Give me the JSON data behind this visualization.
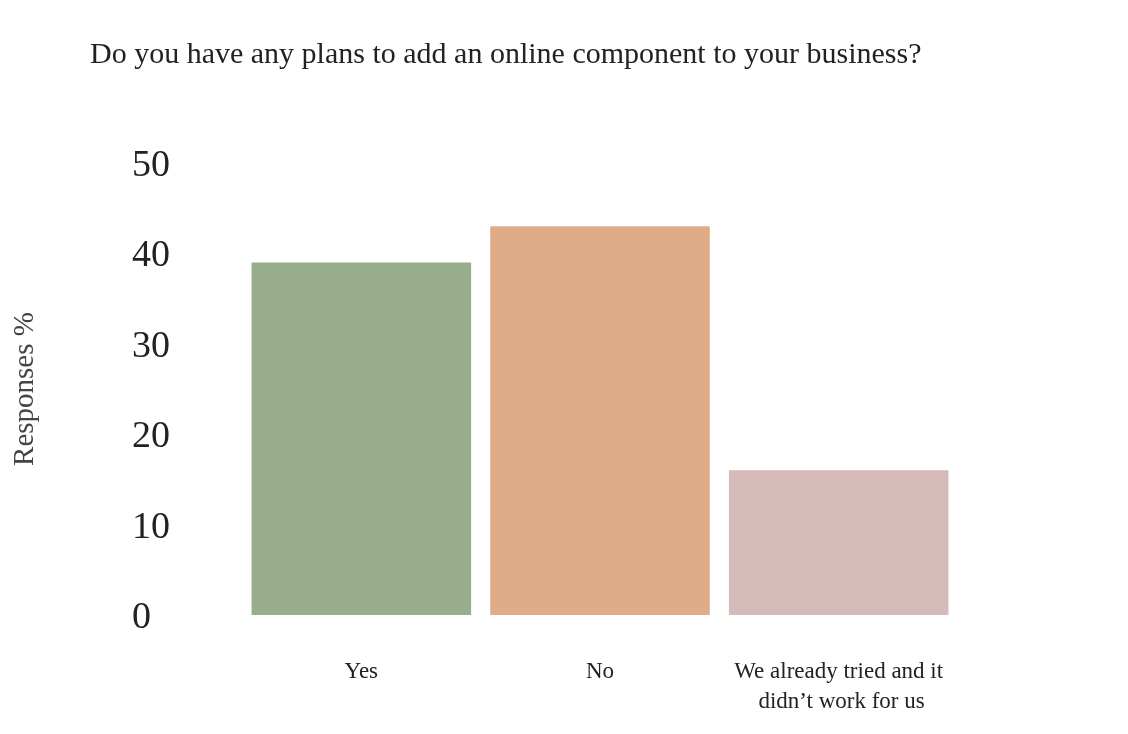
{
  "chart_data": {
    "type": "bar",
    "title": "Do you have any plans to add an online component to your business?",
    "ylabel": "Responses %",
    "categories": [
      "Yes",
      "No",
      "We already tried and it didn’t work for us"
    ],
    "values": [
      39,
      43,
      16
    ],
    "colors": [
      "#98ae8a",
      "#dfac87",
      "#d6b9b9"
    ],
    "ylim": [
      0,
      50
    ],
    "yticks": [
      0,
      10,
      20,
      30,
      40,
      50
    ]
  }
}
